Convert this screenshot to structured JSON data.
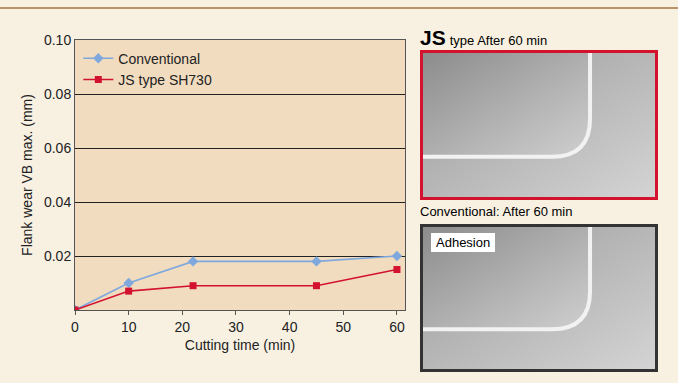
{
  "chart_data": {
    "type": "line",
    "x_label": "Cutting time (min)",
    "y_label": "Flank wear VB max. (mm)",
    "xlim": [
      0,
      61.5
    ],
    "xticks": [
      0,
      10,
      20,
      30,
      40,
      50,
      60
    ],
    "ylim": [
      0,
      0.1
    ],
    "yticks": [
      0.02,
      0.04,
      0.06,
      0.08,
      {
        "value": 0.1,
        "label": "0.10"
      }
    ],
    "grid": true,
    "legend": "top left",
    "x": [
      0,
      10,
      22,
      45,
      60
    ],
    "series": [
      {
        "name": "Conventional",
        "color": "#7fa8dc",
        "marker": "diamond",
        "line_style": "solid",
        "values": [
          0,
          0.01,
          0.018,
          0.018,
          0.02
        ]
      },
      {
        "name": "JS type SH730",
        "color": "#d3122e",
        "marker": "square",
        "line_style": "solid",
        "values": [
          0,
          0.007,
          0.009,
          0.009,
          0.015
        ]
      }
    ]
  },
  "photos": [
    {
      "title_bold": "JS",
      "title": "type  After 60 min",
      "border": "#d3122e"
    },
    {
      "title": "Conventional: After 60 min",
      "annotation": "Adhesion",
      "border": "#333333"
    }
  ]
}
